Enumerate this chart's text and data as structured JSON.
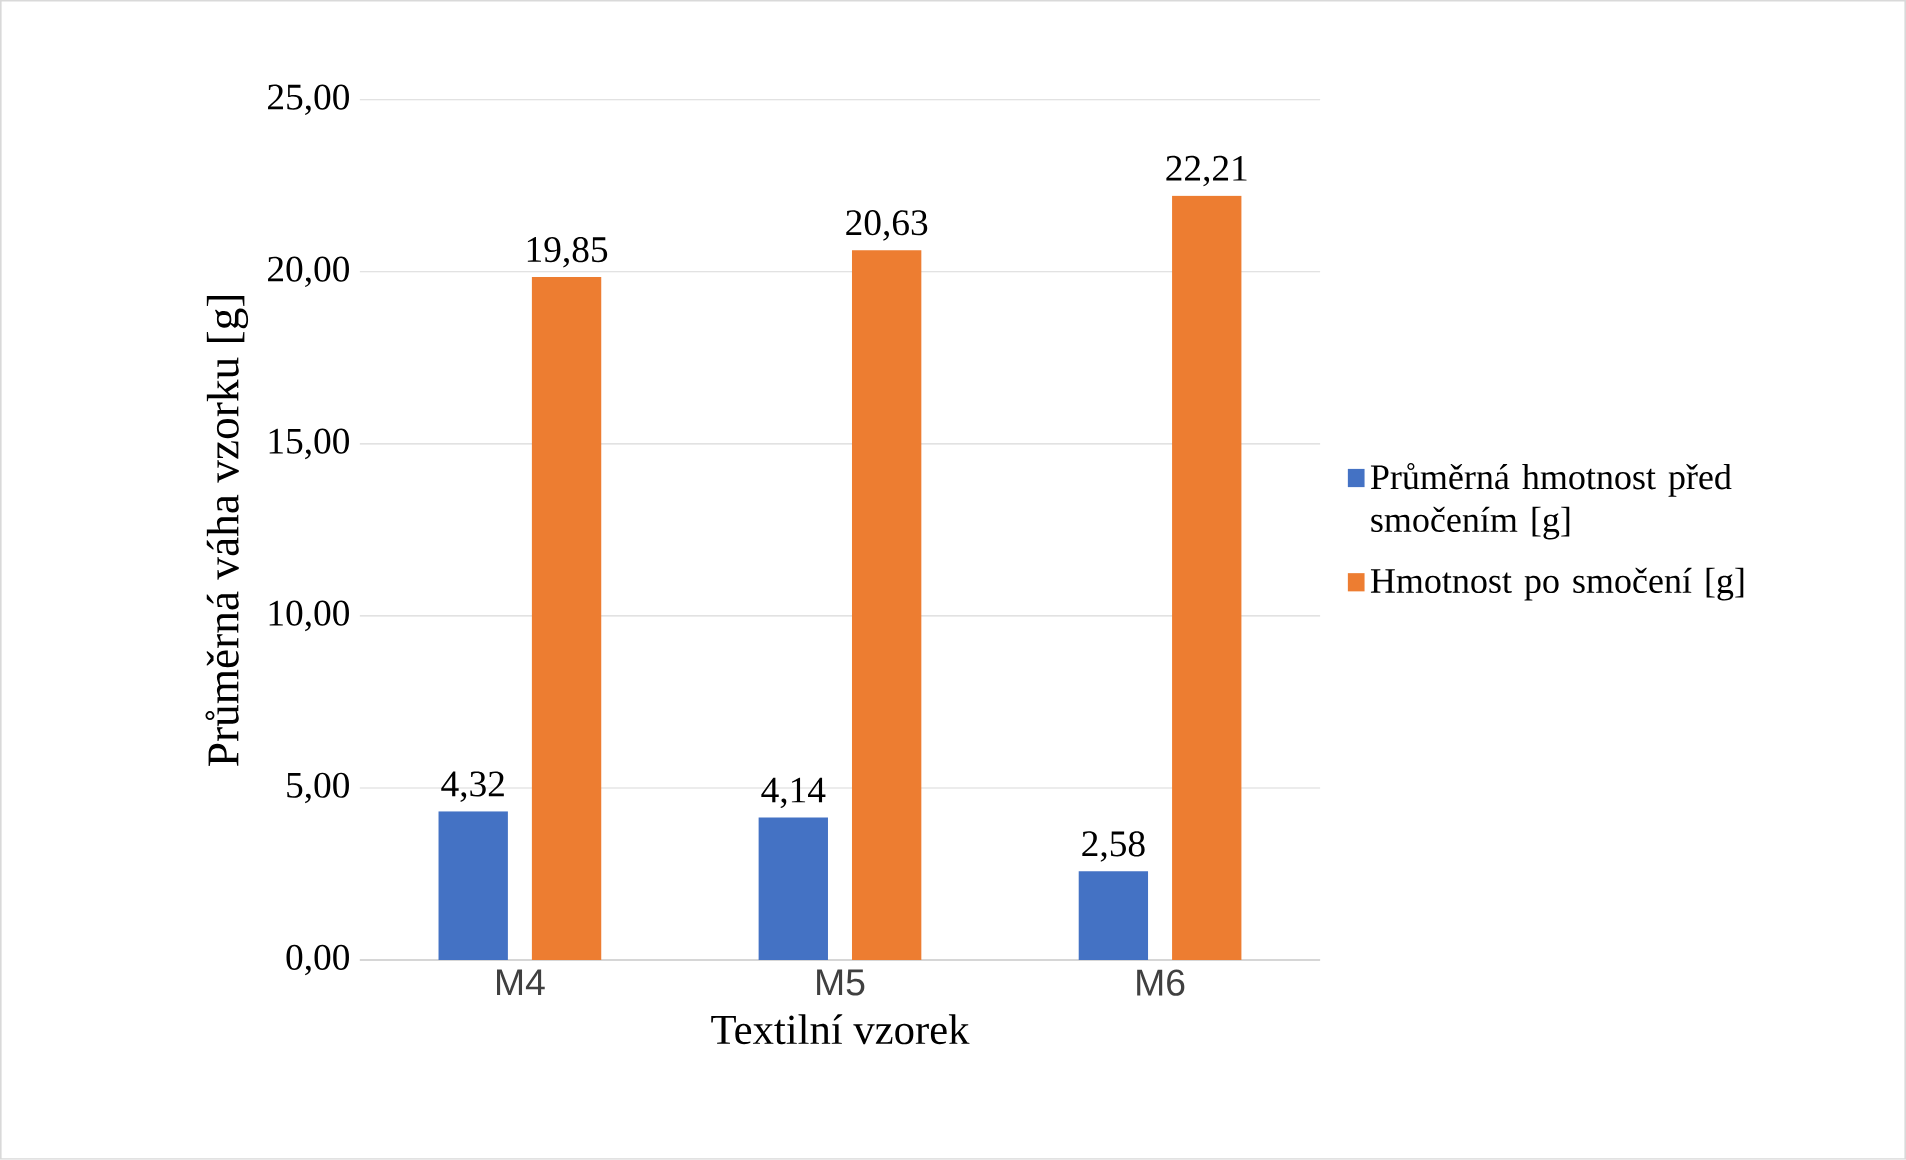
{
  "chart_data": {
    "type": "bar",
    "xlabel": "Textilní vzorek",
    "ylabel": "Průměrná váha vzorku [g]",
    "categories": [
      "M4",
      "M5",
      "M6"
    ],
    "series": [
      {
        "name": "Průměrná hmotnost před smočením [g]",
        "color": "#4472c4",
        "values": [
          4.32,
          4.14,
          2.58
        ],
        "value_labels": [
          "4,32",
          "4,14",
          "2,58"
        ]
      },
      {
        "name": "Hmotnost po smočení [g]",
        "color": "#ed7d31",
        "values": [
          19.85,
          20.63,
          22.21
        ],
        "value_labels": [
          "19,85",
          "20,63",
          "22,21"
        ]
      }
    ],
    "ylim": [
      0,
      25
    ],
    "yticks": [
      {
        "value": 0,
        "label": "0,00"
      },
      {
        "value": 5,
        "label": "5,00"
      },
      {
        "value": 10,
        "label": "10,00"
      },
      {
        "value": 15,
        "label": "15,00"
      },
      {
        "value": 20,
        "label": "20,00"
      },
      {
        "value": 25,
        "label": "25,00"
      }
    ],
    "grid": "y",
    "legend": "right"
  }
}
